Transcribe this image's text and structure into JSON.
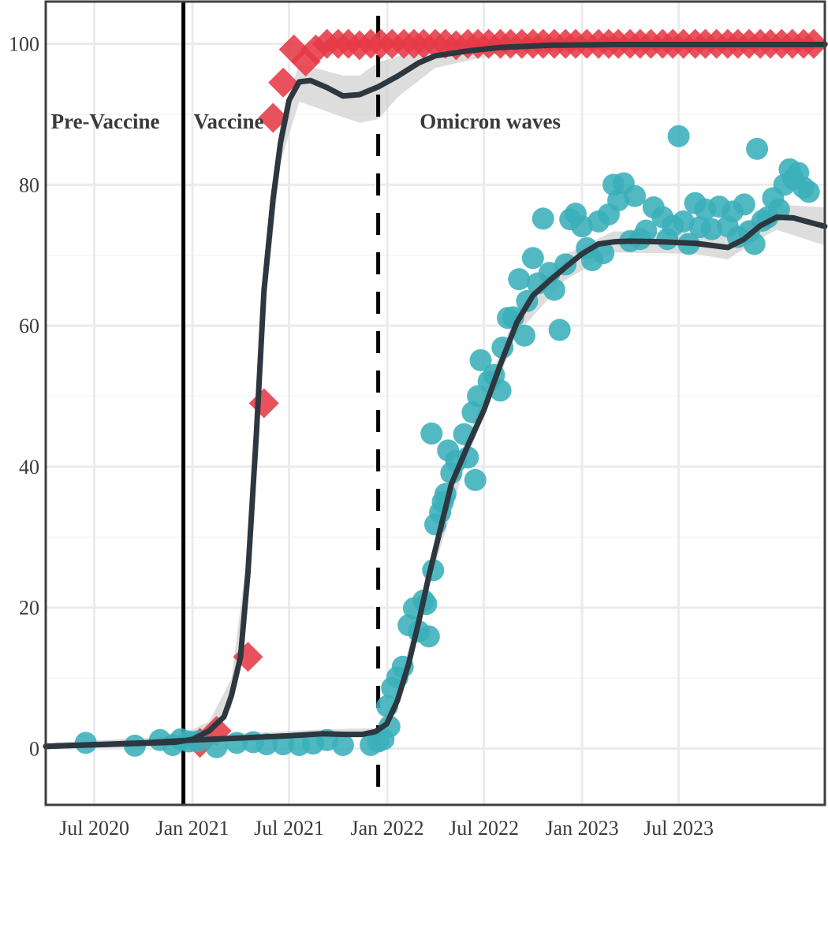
{
  "chart_data": {
    "type": "scatter",
    "title": "",
    "xlabel": "",
    "ylabel": "",
    "x_type": "date",
    "xlim": [
      "2020-04-01",
      "2024-03-31"
    ],
    "ylim": [
      -8,
      106
    ],
    "grid": true,
    "legend": "none",
    "x_ticks": [
      {
        "date": "2020-07-01",
        "label": "Jul 2020"
      },
      {
        "date": "2021-01-01",
        "label": "Jan 2021"
      },
      {
        "date": "2021-07-01",
        "label": "Jul 2021"
      },
      {
        "date": "2022-01-01",
        "label": "Jan 2022"
      },
      {
        "date": "2022-07-01",
        "label": "Jul 2022"
      },
      {
        "date": "2023-01-01",
        "label": "Jan 2023"
      },
      {
        "date": "2023-07-01",
        "label": "Jul 2023"
      }
    ],
    "y_ticks": [
      0,
      20,
      40,
      60,
      80,
      100
    ],
    "vlines": [
      {
        "date": "2020-12-15",
        "style": "solid"
      },
      {
        "date": "2021-12-15",
        "style": "dashed"
      }
    ],
    "annotations": [
      {
        "text": "Pre-Vaccine",
        "x": "2020-07-01",
        "y": 89
      },
      {
        "text": "Vaccine",
        "x": "2021-04-15",
        "y": 89
      },
      {
        "text": "Omicron waves",
        "x": "2022-06-01",
        "y": 89
      }
    ],
    "series": [
      {
        "marker": "diamond",
        "color": "#e63946",
        "points": [
          [
            "2021-01-15",
            0.8
          ],
          [
            "2021-02-15",
            2.5
          ],
          [
            "2021-04-15",
            13
          ],
          [
            "2021-05-15",
            49
          ],
          [
            "2021-06-01",
            89.5
          ],
          [
            "2021-06-20",
            94.5
          ],
          [
            "2021-07-10",
            99.2
          ],
          [
            "2021-08-01",
            97.5
          ],
          [
            "2021-08-20",
            99.2
          ],
          [
            "2021-09-10",
            100
          ],
          [
            "2021-10-01",
            100
          ],
          [
            "2021-10-20",
            100
          ],
          [
            "2021-11-10",
            99.8
          ],
          [
            "2021-12-01",
            100
          ],
          [
            "2021-12-20",
            100
          ],
          [
            "2022-01-10",
            100
          ],
          [
            "2022-02-01",
            100
          ],
          [
            "2022-02-20",
            100
          ],
          [
            "2022-03-10",
            100
          ],
          [
            "2022-04-01",
            100
          ],
          [
            "2022-04-20",
            100
          ],
          [
            "2022-05-10",
            99.8
          ],
          [
            "2022-06-01",
            100
          ],
          [
            "2022-06-20",
            100
          ],
          [
            "2022-07-10",
            100
          ],
          [
            "2022-08-01",
            100
          ],
          [
            "2022-08-20",
            100
          ],
          [
            "2022-09-10",
            100
          ],
          [
            "2022-10-01",
            100
          ],
          [
            "2022-10-20",
            100
          ],
          [
            "2022-11-10",
            100
          ],
          [
            "2022-12-01",
            100
          ],
          [
            "2022-12-20",
            100
          ],
          [
            "2023-01-10",
            100
          ],
          [
            "2023-02-01",
            100
          ],
          [
            "2023-02-20",
            100
          ],
          [
            "2023-03-10",
            100
          ],
          [
            "2023-04-01",
            100
          ],
          [
            "2023-04-20",
            100
          ],
          [
            "2023-05-10",
            100
          ],
          [
            "2023-06-01",
            100
          ],
          [
            "2023-06-20",
            100
          ],
          [
            "2023-07-10",
            100
          ],
          [
            "2023-08-01",
            100
          ],
          [
            "2023-08-20",
            100
          ],
          [
            "2023-09-10",
            100
          ],
          [
            "2023-10-01",
            100
          ],
          [
            "2023-10-20",
            100
          ],
          [
            "2023-11-10",
            100
          ],
          [
            "2023-12-01",
            100
          ],
          [
            "2023-12-20",
            100
          ],
          [
            "2024-01-10",
            100
          ],
          [
            "2024-01-30",
            100
          ],
          [
            "2024-02-20",
            100
          ],
          [
            "2024-03-10",
            100
          ]
        ]
      },
      {
        "marker": "circle",
        "color": "#3aafb9",
        "points": [
          [
            "2020-06-15",
            0.8
          ],
          [
            "2020-09-15",
            0.4
          ],
          [
            "2020-11-01",
            1.2
          ],
          [
            "2020-11-25",
            0.5
          ],
          [
            "2020-12-10",
            1.3
          ],
          [
            "2020-12-25",
            1.0
          ],
          [
            "2021-01-10",
            1.0
          ],
          [
            "2021-02-15",
            0.2
          ],
          [
            "2021-03-25",
            0.8
          ],
          [
            "2021-04-25",
            0.9
          ],
          [
            "2021-05-20",
            0.6
          ],
          [
            "2021-06-20",
            0.6
          ],
          [
            "2021-07-20",
            0.5
          ],
          [
            "2021-08-15",
            0.7
          ],
          [
            "2021-09-10",
            1.2
          ],
          [
            "2021-10-10",
            0.5
          ],
          [
            "2021-12-01",
            0.5
          ],
          [
            "2021-12-15",
            1.0
          ],
          [
            "2021-12-25",
            1.3
          ],
          [
            "2022-01-05",
            3.1
          ],
          [
            "2022-01-01",
            6.0
          ],
          [
            "2022-01-10",
            8.6
          ],
          [
            "2022-01-20",
            10.1
          ],
          [
            "2022-01-30",
            11.6
          ],
          [
            "2022-02-10",
            17.5
          ],
          [
            "2022-02-20",
            19.9
          ],
          [
            "2022-03-01",
            16.6
          ],
          [
            "2022-03-10",
            21.0
          ],
          [
            "2022-03-15",
            20.5
          ],
          [
            "2022-03-20",
            15.9
          ],
          [
            "2022-03-25",
            44.7
          ],
          [
            "2022-03-28",
            25.3
          ],
          [
            "2022-04-01",
            31.8
          ],
          [
            "2022-04-10",
            33.5
          ],
          [
            "2022-04-15",
            35.0
          ],
          [
            "2022-04-20",
            36.1
          ],
          [
            "2022-04-25",
            42.3
          ],
          [
            "2022-05-01",
            39.1
          ],
          [
            "2022-05-10",
            40.8
          ],
          [
            "2022-06-01",
            41.3
          ],
          [
            "2022-05-25",
            44.6
          ],
          [
            "2022-06-10",
            47.7
          ],
          [
            "2022-06-20",
            50.0
          ],
          [
            "2022-06-15",
            38.1
          ],
          [
            "2022-06-25",
            55.1
          ],
          [
            "2022-07-10",
            52.1
          ],
          [
            "2022-07-20",
            53.0
          ],
          [
            "2022-08-01",
            50.8
          ],
          [
            "2022-08-05",
            56.9
          ],
          [
            "2022-08-15",
            61.1
          ],
          [
            "2022-08-25",
            61.2
          ],
          [
            "2022-09-05",
            66.6
          ],
          [
            "2022-09-15",
            58.6
          ],
          [
            "2022-09-20",
            63.5
          ],
          [
            "2022-10-01",
            69.6
          ],
          [
            "2022-10-10",
            66.0
          ],
          [
            "2022-10-20",
            75.2
          ],
          [
            "2022-11-01",
            67.5
          ],
          [
            "2022-11-10",
            65.1
          ],
          [
            "2022-11-20",
            59.4
          ],
          [
            "2022-12-01",
            68.7
          ],
          [
            "2022-12-10",
            75.1
          ],
          [
            "2022-12-20",
            75.9
          ],
          [
            "2023-01-01",
            74.1
          ],
          [
            "2023-01-10",
            71.0
          ],
          [
            "2023-01-20",
            69.3
          ],
          [
            "2023-02-01",
            74.8
          ],
          [
            "2023-02-10",
            70.3
          ],
          [
            "2023-02-20",
            75.8
          ],
          [
            "2023-03-01",
            80.0
          ],
          [
            "2023-03-10",
            77.8
          ],
          [
            "2023-03-20",
            80.2
          ],
          [
            "2023-04-01",
            72.0
          ],
          [
            "2023-04-10",
            78.4
          ],
          [
            "2023-04-20",
            72.3
          ],
          [
            "2023-05-01",
            73.5
          ],
          [
            "2023-05-15",
            76.8
          ],
          [
            "2023-06-01",
            75.4
          ],
          [
            "2023-06-10",
            72.3
          ],
          [
            "2023-06-20",
            74.2
          ],
          [
            "2023-07-01",
            86.9
          ],
          [
            "2023-07-10",
            74.8
          ],
          [
            "2023-07-20",
            71.6
          ],
          [
            "2023-08-01",
            77.4
          ],
          [
            "2023-08-10",
            74.0
          ],
          [
            "2023-08-20",
            76.5
          ],
          [
            "2023-09-01",
            73.7
          ],
          [
            "2023-09-15",
            76.9
          ],
          [
            "2023-10-01",
            74.1
          ],
          [
            "2023-10-10",
            76.2
          ],
          [
            "2023-10-20",
            72.6
          ],
          [
            "2023-11-01",
            77.2
          ],
          [
            "2023-11-10",
            73.4
          ],
          [
            "2023-11-20",
            71.6
          ],
          [
            "2023-11-25",
            85.1
          ],
          [
            "2023-12-05",
            74.9
          ],
          [
            "2023-12-15",
            75.4
          ],
          [
            "2023-12-25",
            78.1
          ],
          [
            "2024-01-05",
            76.5
          ],
          [
            "2024-01-15",
            80.0
          ],
          [
            "2024-01-25",
            82.2
          ],
          [
            "2024-02-01",
            80.8
          ],
          [
            "2024-02-10",
            81.7
          ],
          [
            "2024-02-20",
            79.6
          ],
          [
            "2024-03-01",
            79.0
          ]
        ]
      }
    ],
    "trends": [
      {
        "color": "#2d3740",
        "points": [
          [
            "2020-04-01",
            0.3
          ],
          [
            "2020-08-01",
            0.6
          ],
          [
            "2020-12-01",
            0.9
          ],
          [
            "2021-01-01",
            1.3
          ],
          [
            "2021-02-01",
            2.5
          ],
          [
            "2021-03-01",
            4.5
          ],
          [
            "2021-03-15",
            7.5
          ],
          [
            "2021-04-01",
            13
          ],
          [
            "2021-04-15",
            25
          ],
          [
            "2021-05-01",
            45
          ],
          [
            "2021-05-15",
            65
          ],
          [
            "2021-06-01",
            78
          ],
          [
            "2021-06-15",
            86
          ],
          [
            "2021-07-01",
            92
          ],
          [
            "2021-07-20",
            94.6
          ],
          [
            "2021-08-10",
            94.8
          ],
          [
            "2021-09-10",
            93.8
          ],
          [
            "2021-10-10",
            92.6
          ],
          [
            "2021-11-10",
            92.8
          ],
          [
            "2021-12-15",
            93.9
          ],
          [
            "2022-01-20",
            95.4
          ],
          [
            "2022-03-01",
            97.3
          ],
          [
            "2022-04-01",
            98.3
          ],
          [
            "2022-06-01",
            99.0
          ],
          [
            "2022-08-01",
            99.5
          ],
          [
            "2022-11-01",
            99.8
          ],
          [
            "2023-03-01",
            99.9
          ],
          [
            "2024-03-31",
            99.9
          ]
        ],
        "band": [
          [
            "2020-04-01",
            0.0,
            0.7
          ],
          [
            "2020-12-01",
            0.3,
            1.6
          ],
          [
            "2021-02-01",
            1.6,
            3.8
          ],
          [
            "2021-03-15",
            5.8,
            9.9
          ],
          [
            "2021-04-15",
            21.5,
            28.5
          ],
          [
            "2021-05-15",
            61,
            69
          ],
          [
            "2021-06-15",
            83.2,
            88.8
          ],
          [
            "2021-07-20",
            91.8,
            97.2
          ],
          [
            "2021-10-10",
            89.6,
            95.5
          ],
          [
            "2021-11-10",
            88.8,
            95.5
          ],
          [
            "2021-12-15",
            89.3,
            97.4
          ],
          [
            "2022-01-20",
            92.4,
            98.2
          ],
          [
            "2022-04-01",
            96.6,
            99.8
          ],
          [
            "2022-08-01",
            98.6,
            100.3
          ],
          [
            "2023-03-01",
            99.2,
            100.5
          ],
          [
            "2024-03-31",
            99.2,
            100.5
          ]
        ]
      },
      {
        "color": "#2d3740",
        "points": [
          [
            "2020-04-01",
            0.3
          ],
          [
            "2020-10-01",
            0.8
          ],
          [
            "2021-01-01",
            1.2
          ],
          [
            "2021-04-01",
            1.5
          ],
          [
            "2021-07-01",
            1.8
          ],
          [
            "2021-09-01",
            2.1
          ],
          [
            "2021-10-15",
            2.0
          ],
          [
            "2021-11-15",
            2.0
          ],
          [
            "2021-12-10",
            2.4
          ],
          [
            "2021-12-31",
            3.5
          ],
          [
            "2022-01-20",
            6.8
          ],
          [
            "2022-02-10",
            12
          ],
          [
            "2022-03-01",
            18
          ],
          [
            "2022-03-20",
            24.5
          ],
          [
            "2022-04-10",
            31
          ],
          [
            "2022-05-01",
            37.5
          ],
          [
            "2022-06-01",
            43
          ],
          [
            "2022-07-01",
            48
          ],
          [
            "2022-08-01",
            54.5
          ],
          [
            "2022-09-01",
            60.5
          ],
          [
            "2022-10-01",
            64.3
          ],
          [
            "2022-11-01",
            66.4
          ],
          [
            "2022-12-01",
            68.3
          ],
          [
            "2023-01-01",
            70.2
          ],
          [
            "2023-02-01",
            71.6
          ],
          [
            "2023-03-01",
            71.9
          ],
          [
            "2023-04-01",
            72.0
          ],
          [
            "2023-06-01",
            71.9
          ],
          [
            "2023-08-01",
            71.7
          ],
          [
            "2023-10-01",
            71.1
          ],
          [
            "2023-11-01",
            72.3
          ],
          [
            "2023-12-01",
            74.2
          ],
          [
            "2024-01-01",
            75.4
          ],
          [
            "2024-02-01",
            75.3
          ],
          [
            "2024-03-31",
            74.1
          ]
        ],
        "band": [
          [
            "2020-04-01",
            0.0,
            0.8
          ],
          [
            "2021-01-01",
            0.6,
            1.8
          ],
          [
            "2021-09-01",
            1.5,
            2.7
          ],
          [
            "2021-12-10",
            1.9,
            2.9
          ],
          [
            "2022-01-20",
            5.8,
            7.8
          ],
          [
            "2022-03-20",
            23,
            26
          ],
          [
            "2022-06-01",
            41.5,
            44.5
          ],
          [
            "2022-09-01",
            58.8,
            62.2
          ],
          [
            "2022-12-01",
            66.5,
            70.1
          ],
          [
            "2023-03-01",
            70.4,
            73.4
          ],
          [
            "2023-08-01",
            70.2,
            73.2
          ],
          [
            "2023-10-01",
            69.4,
            72.8
          ],
          [
            "2023-12-01",
            72.4,
            76.0
          ],
          [
            "2024-01-01",
            73.6,
            77.2
          ],
          [
            "2024-03-31",
            71.4,
            76.8
          ]
        ]
      }
    ]
  }
}
